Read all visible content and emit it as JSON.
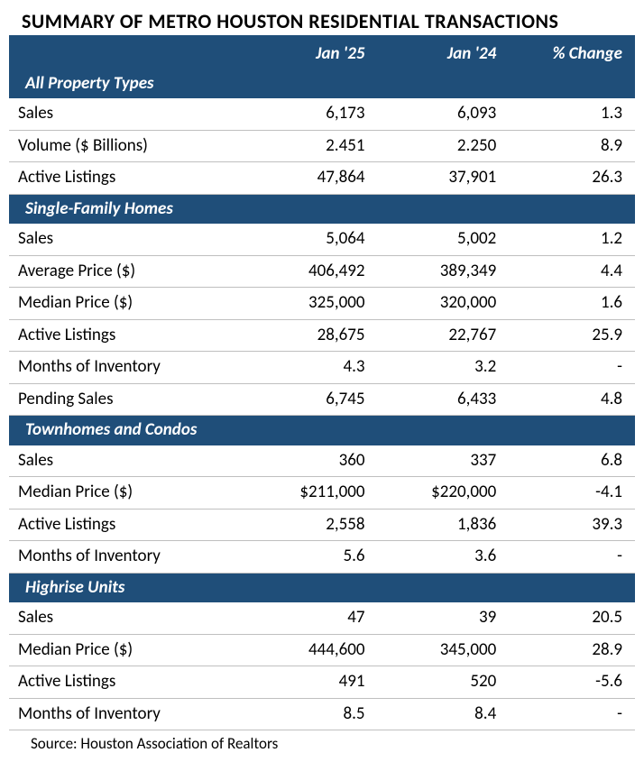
{
  "title": "SUMMARY OF METRO HOUSTON RESIDENTIAL TRANSACTIONS",
  "columns": [
    "",
    "Jan '25",
    "Jan '24",
    "% Change"
  ],
  "colors": {
    "header_bg": "#1f4e79",
    "header_text": "#ffffff",
    "border": "#bfbfbf",
    "title_underline": "#1f4e79"
  },
  "typography": {
    "font_family": "Calibri",
    "title_fontsize": 22,
    "body_fontsize": 19
  },
  "sections": [
    {
      "name": "All Property Types",
      "rows": [
        {
          "label": "Sales",
          "v1": "6,173",
          "v2": "6,093",
          "chg": "1.3"
        },
        {
          "label": "Volume ($ Billions)",
          "v1": "2.451",
          "v2": "2.250",
          "chg": "8.9"
        },
        {
          "label": "Active Listings",
          "v1": "47,864",
          "v2": "37,901",
          "chg": "26.3"
        }
      ]
    },
    {
      "name": "Single-Family Homes",
      "rows": [
        {
          "label": "Sales",
          "v1": "5,064",
          "v2": "5,002",
          "chg": "1.2"
        },
        {
          "label": "Average Price ($)",
          "v1": "406,492",
          "v2": "389,349",
          "chg": "4.4"
        },
        {
          "label": "Median Price ($)",
          "v1": "325,000",
          "v2": "320,000",
          "chg": "1.6"
        },
        {
          "label": "Active Listings",
          "v1": "28,675",
          "v2": "22,767",
          "chg": "25.9"
        },
        {
          "label": "Months of Inventory",
          "v1": "4.3",
          "v2": "3.2",
          "chg": "-"
        },
        {
          "label": "Pending Sales",
          "v1": "6,745",
          "v2": "6,433",
          "chg": "4.8"
        }
      ]
    },
    {
      "name": "Townhomes and Condos",
      "rows": [
        {
          "label": "Sales",
          "v1": "360",
          "v2": "337",
          "chg": "6.8"
        },
        {
          "label": "Median Price ($)",
          "v1": "$211,000",
          "v2": "$220,000",
          "chg": "-4.1"
        },
        {
          "label": "Active Listings",
          "v1": "2,558",
          "v2": "1,836",
          "chg": "39.3"
        },
        {
          "label": "Months of Inventory",
          "v1": "5.6",
          "v2": "3.6",
          "chg": "-"
        }
      ]
    },
    {
      "name": "Highrise Units",
      "rows": [
        {
          "label": "Sales",
          "v1": "47",
          "v2": "39",
          "chg": "20.5"
        },
        {
          "label": "Median Price ($)",
          "v1": "444,600",
          "v2": "345,000",
          "chg": "28.9"
        },
        {
          "label": "Active Listings",
          "v1": "491",
          "v2": "520",
          "chg": "-5.6"
        },
        {
          "label": "Months of Inventory",
          "v1": "8.5",
          "v2": "8.4",
          "chg": "-"
        }
      ]
    }
  ],
  "source": "Source: Houston Association of Realtors"
}
